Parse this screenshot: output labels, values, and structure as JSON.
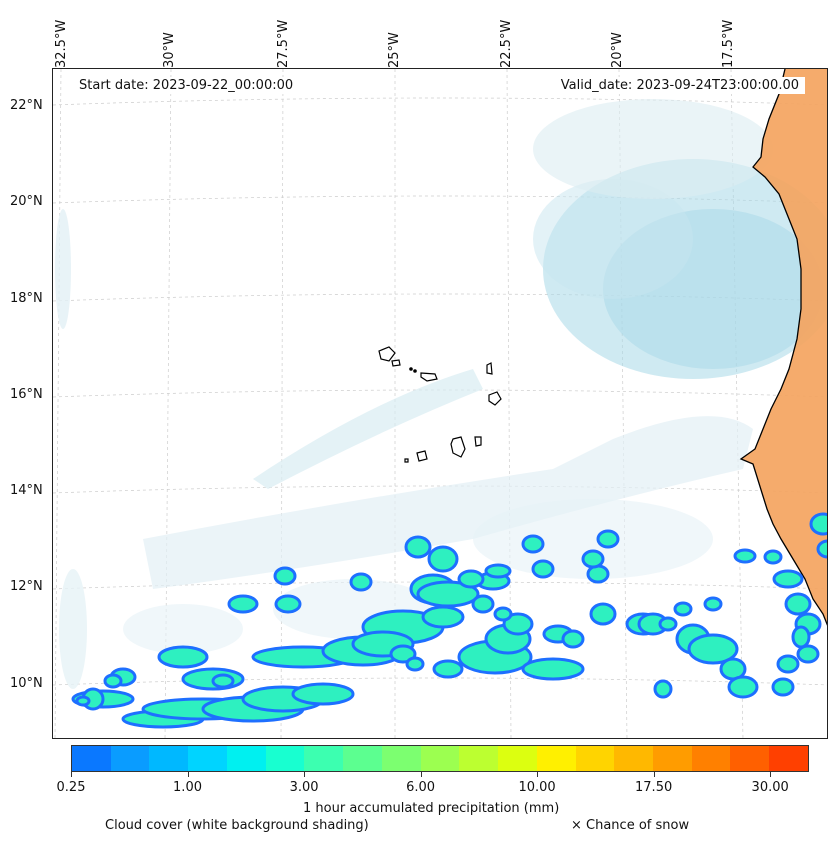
{
  "lon_labels": [
    "32.5°W",
    "30°W",
    "27.5°W",
    "25°W",
    "22.5°W",
    "20°W",
    "17.5°W"
  ],
  "lat_labels": [
    "22°N",
    "20°N",
    "18°N",
    "16°N",
    "14°N",
    "12°N",
    "10°N"
  ],
  "start_date": "Start date: 2023-09-22_00:00:00",
  "valid_date": "Valid_date: 2023-09-24T23:00:00.00",
  "colorbar": {
    "label": "1 hour accumulated precipitation (mm)",
    "ticks": [
      "0.25",
      "1.00",
      "3.00",
      "6.00",
      "10.00",
      "17.50",
      "30.00"
    ],
    "colors": [
      "#0a78ff",
      "#0a9cff",
      "#00b8ff",
      "#00d4ff",
      "#00f0f0",
      "#18ffd0",
      "#3cffb0",
      "#5cff90",
      "#7cff70",
      "#9cff50",
      "#bcff30",
      "#dcff10",
      "#fff000",
      "#ffd400",
      "#ffb800",
      "#ff9c00",
      "#ff8000",
      "#ff6000",
      "#ff4000"
    ],
    "colors_note": ""
  },
  "footer": {
    "cloud_label": "Cloud cover (white background shading)",
    "snow_label": "× Chance of snow"
  },
  "colors": {
    "land": "#f4a460",
    "cloud": "#a8d8e8",
    "precip_edge": "#1e6fff",
    "precip_fill": "#2ef0c0"
  }
}
